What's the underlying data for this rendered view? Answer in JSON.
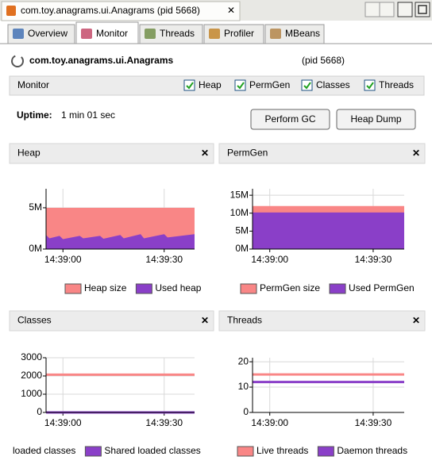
{
  "window_tab": "com.toy.anagrams.ui.Anagrams (pid 5668)",
  "tabs": [
    "Overview",
    "Monitor",
    "Threads",
    "Profiler",
    "MBeans"
  ],
  "header": {
    "app": "com.toy.anagrams.ui.Anagrams",
    "pid": "(pid 5668)"
  },
  "monitor_bar": {
    "label": "Monitor",
    "checkboxes": [
      "Heap",
      "PermGen",
      "Classes",
      "Threads"
    ]
  },
  "uptime": {
    "label": "Uptime:",
    "value": "1 min 01 sec"
  },
  "buttons": [
    "Perform GC",
    "Heap Dump"
  ],
  "panels": [
    {
      "title": "Heap",
      "type": "area",
      "x": [
        52735,
        52736,
        52739,
        52740,
        52745,
        52746,
        52751,
        52752,
        52757,
        52758,
        52763,
        52764,
        52770,
        52771,
        52779
      ],
      "xlim": [
        52735,
        52779
      ],
      "xticks": [
        {
          "value": 52740,
          "label": "14:39:00"
        },
        {
          "value": 52770,
          "label": "14:39:30"
        }
      ],
      "ylim": [
        0,
        7.3
      ],
      "yticks": [
        {
          "value": 0,
          "label": "0M"
        },
        {
          "value": 5,
          "label": "5M"
        }
      ],
      "series": [
        {
          "name": "Heap size",
          "color": "#f98686",
          "values": [
            5,
            5,
            5,
            5,
            5,
            5,
            5,
            5,
            5,
            5,
            5,
            5,
            5,
            5,
            5
          ]
        },
        {
          "name": "Used heap",
          "color": "#8a3fc8",
          "values": [
            1.7,
            1.3,
            1.6,
            1.2,
            1.6,
            1.3,
            1.6,
            1.25,
            1.7,
            1.3,
            1.8,
            1.3,
            1.8,
            1.4,
            1.8
          ]
        }
      ]
    },
    {
      "title": "PermGen",
      "type": "area",
      "x": [
        52735,
        52779
      ],
      "xlim": [
        52735,
        52779
      ],
      "xticks": [
        {
          "value": 52740,
          "label": "14:39:00"
        },
        {
          "value": 52770,
          "label": "14:39:30"
        }
      ],
      "ylim": [
        0,
        16.8
      ],
      "yticks": [
        {
          "value": 0,
          "label": "0M"
        },
        {
          "value": 5,
          "label": "5M"
        },
        {
          "value": 10,
          "label": "10M"
        },
        {
          "value": 15,
          "label": "15M"
        }
      ],
      "series": [
        {
          "name": "PermGen size",
          "color": "#f98686",
          "values": [
            12,
            12
          ]
        },
        {
          "name": "Used PermGen",
          "color": "#8a3fc8",
          "values": [
            10.2,
            10.2
          ]
        }
      ]
    },
    {
      "title": "Classes",
      "type": "line",
      "x": [
        52735,
        52779
      ],
      "xlim": [
        52735,
        52779
      ],
      "xticks": [
        {
          "value": 52740,
          "label": "14:39:00"
        },
        {
          "value": 52770,
          "label": "14:39:30"
        }
      ],
      "ylim": [
        0,
        3000
      ],
      "yticks": [
        0,
        1000,
        2000,
        3000
      ],
      "series": [
        {
          "name": "loaded classes",
          "color": "#f98686",
          "values": [
            2070,
            2070
          ]
        },
        {
          "name": "Shared loaded classes",
          "color": "#8a3fc8",
          "values": [
            0,
            0
          ]
        }
      ]
    },
    {
      "title": "Threads",
      "type": "line",
      "x": [
        52735,
        52779
      ],
      "xlim": [
        52735,
        52779
      ],
      "xticks": [
        {
          "value": 52740,
          "label": "14:39:00"
        },
        {
          "value": 52770,
          "label": "14:39:30"
        }
      ],
      "ylim": [
        0,
        21.6
      ],
      "yticks": [
        0,
        10,
        20
      ],
      "series": [
        {
          "name": "Live threads",
          "color": "#f98686",
          "values": [
            15,
            15
          ]
        },
        {
          "name": "Daemon threads",
          "color": "#8a3fc8",
          "values": [
            12,
            12
          ]
        }
      ]
    }
  ]
}
